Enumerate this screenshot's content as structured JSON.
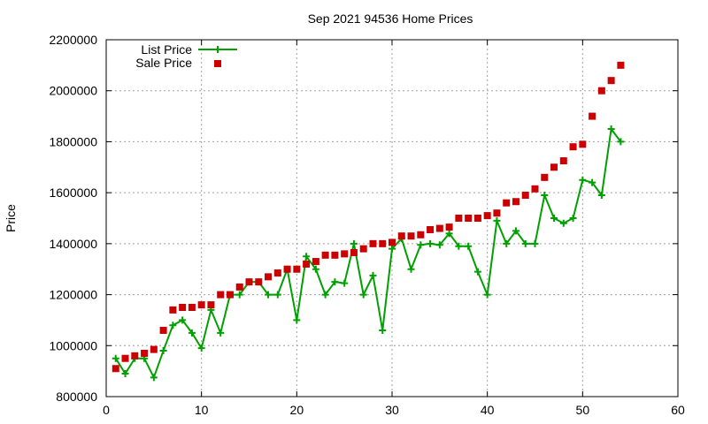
{
  "chart_data": {
    "type": "line",
    "title": "Sep 2021 94536 Home Prices",
    "xlabel": "",
    "ylabel": "Price",
    "xlim": [
      0,
      60
    ],
    "ylim": [
      800000,
      2200000
    ],
    "x_ticks": [
      0,
      10,
      20,
      30,
      40,
      50,
      60
    ],
    "y_ticks": [
      800000,
      1000000,
      1200000,
      1400000,
      1600000,
      1800000,
      2000000,
      2200000
    ],
    "x_tick_labels": [
      "0",
      "10",
      "20",
      "30",
      "40",
      "50",
      "60"
    ],
    "y_tick_labels": [
      "800000",
      "1000000",
      "1200000",
      "1400000",
      "1600000",
      "1800000",
      "2000000",
      "2200000"
    ],
    "grid": true,
    "legend_position": "top-left",
    "series": [
      {
        "name": "List Price",
        "style": "line-plus",
        "color": "#00a000",
        "x": [
          1,
          2,
          3,
          4,
          5,
          6,
          7,
          8,
          9,
          10,
          11,
          12,
          13,
          14,
          15,
          16,
          17,
          18,
          19,
          20,
          21,
          22,
          23,
          24,
          25,
          26,
          27,
          28,
          29,
          30,
          31,
          32,
          33,
          34,
          35,
          36,
          37,
          38,
          39,
          40,
          41,
          42,
          43,
          44,
          45,
          46,
          47,
          48,
          49,
          50,
          51,
          52,
          53,
          54
        ],
        "y": [
          950000,
          890000,
          950000,
          950000,
          875000,
          980000,
          1080000,
          1100000,
          1050000,
          990000,
          1140000,
          1050000,
          1200000,
          1200000,
          1250000,
          1250000,
          1200000,
          1200000,
          1300000,
          1100000,
          1350000,
          1300000,
          1200000,
          1250000,
          1245000,
          1400000,
          1200000,
          1275000,
          1060000,
          1380000,
          1420000,
          1300000,
          1395000,
          1400000,
          1395000,
          1440000,
          1390000,
          1390000,
          1290000,
          1200000,
          1490000,
          1400000,
          1450000,
          1400000,
          1400000,
          1590000,
          1500000,
          1480000,
          1500000,
          1650000,
          1640000,
          1590000,
          1850000,
          1800000
        ]
      },
      {
        "name": "Sale Price",
        "style": "square-markers",
        "color": "#cc0000",
        "x": [
          1,
          2,
          3,
          4,
          5,
          6,
          7,
          8,
          9,
          10,
          11,
          12,
          13,
          14,
          15,
          16,
          17,
          18,
          19,
          20,
          21,
          22,
          23,
          24,
          25,
          26,
          27,
          28,
          29,
          30,
          31,
          32,
          33,
          34,
          35,
          36,
          37,
          38,
          39,
          40,
          41,
          42,
          43,
          44,
          45,
          46,
          47,
          48,
          49,
          50,
          51,
          52,
          53,
          54
        ],
        "y": [
          910000,
          950000,
          960000,
          970000,
          985000,
          1060000,
          1140000,
          1150000,
          1150000,
          1160000,
          1160000,
          1200000,
          1200000,
          1230000,
          1250000,
          1250000,
          1270000,
          1285000,
          1300000,
          1300000,
          1320000,
          1330000,
          1355000,
          1355000,
          1360000,
          1365000,
          1380000,
          1400000,
          1400000,
          1405000,
          1430000,
          1430000,
          1435000,
          1455000,
          1460000,
          1465000,
          1500000,
          1500000,
          1500000,
          1510000,
          1520000,
          1560000,
          1565000,
          1590000,
          1615000,
          1660000,
          1700000,
          1725000,
          1780000,
          1790000,
          1900000,
          2000000,
          2040000,
          2100000
        ]
      }
    ]
  }
}
